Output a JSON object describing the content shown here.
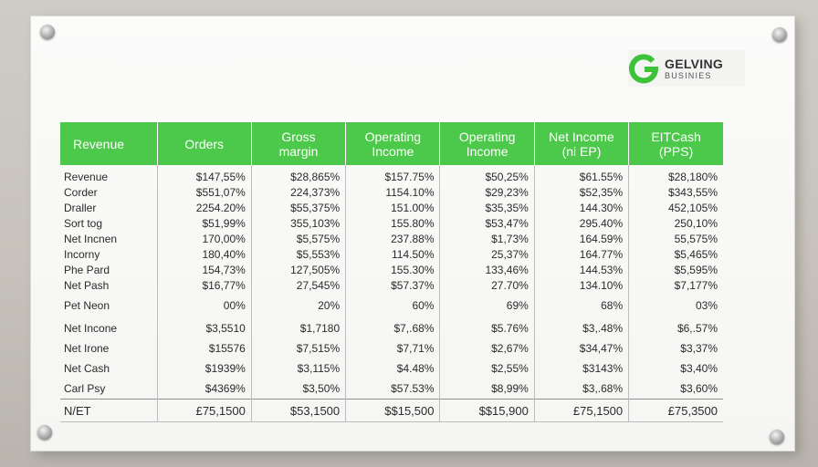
{
  "logo": {
    "name": "GELVING",
    "subtitle": "BUSINIES"
  },
  "table": {
    "headers": [
      "Revenue",
      "Orders",
      "Gross\nmargin",
      "Operating\nIncome",
      "Operating\nIncome",
      "Net Income\n(ni EP)",
      "EITCash\n(PPS)"
    ],
    "rows": [
      {
        "label": "Revenue",
        "cells": [
          "$147,55%",
          "$28,865%",
          "$157.75%",
          "$50,25%",
          "$61.55%",
          "$28,180%"
        ]
      },
      {
        "label": "Corder",
        "cells": [
          "$551,07%",
          "224,373%",
          "1154.10%",
          "$29,23%",
          "$52,35%",
          "$343,55%"
        ]
      },
      {
        "label": "Draller",
        "cells": [
          "2254.20%",
          "$55,375%",
          "151.00%",
          "$35,35%",
          "144.30%",
          "452,105%"
        ]
      },
      {
        "label": "Sort tog",
        "cells": [
          "$51,99%",
          "355,103%",
          "155.80%",
          "$53,47%",
          "295.40%",
          "250,10%"
        ]
      },
      {
        "label": "Net Incnen",
        "cells": [
          "170,00%",
          "$5,575%",
          "237.88%",
          "$1,73%",
          "164.59%",
          "55,575%"
        ]
      },
      {
        "label": "Incorny",
        "cells": [
          "180,40%",
          "$5,553%",
          "114.50%",
          "25,37%",
          "164.77%",
          "$5,465%"
        ]
      },
      {
        "label": "Phe Pard",
        "cells": [
          "154,73%",
          "127,505%",
          "155.30%",
          "133,46%",
          "144.53%",
          "$5,595%"
        ]
      },
      {
        "label": "Net Pash",
        "cells": [
          "$16,77%",
          "27,545%",
          "$57.37%",
          "27.70%",
          "134.10%",
          "$7,177%"
        ]
      },
      {
        "label": "Pet Neon",
        "cells": [
          "00%",
          "20%",
          "60%",
          "69%",
          "68%",
          "03%"
        ]
      },
      {
        "label": "Net Incone",
        "cells": [
          "$3,5510",
          "$1,7180",
          "$7,.68%",
          "$5.76%",
          "$3,.48%",
          "$6,.57%"
        ]
      },
      {
        "label": "Net Irone",
        "cells": [
          "$15576",
          "$7,515%",
          "$7,71%",
          "$2,67%",
          "$34,47%",
          "$3,37%"
        ]
      },
      {
        "label": "Net Cash",
        "cells": [
          "$1939%",
          "$3,115%",
          "$4.48%",
          "$2,55%",
          "$3143%",
          "$3,40%"
        ]
      },
      {
        "label": "Carl Psy",
        "cells": [
          "$4369%",
          "$3,50%",
          "$57.53%",
          "$8,99%",
          "$3,.68%",
          "$3,60%"
        ]
      }
    ],
    "total": {
      "label": "N/ET",
      "cells": [
        "£75,1500",
        "$53,1500",
        "$$15,500",
        "$$15,900",
        "£75,1500",
        "£75,3500"
      ]
    }
  },
  "colors": {
    "header_green": "#4cc94a",
    "logo_green": "#3ec23a"
  }
}
